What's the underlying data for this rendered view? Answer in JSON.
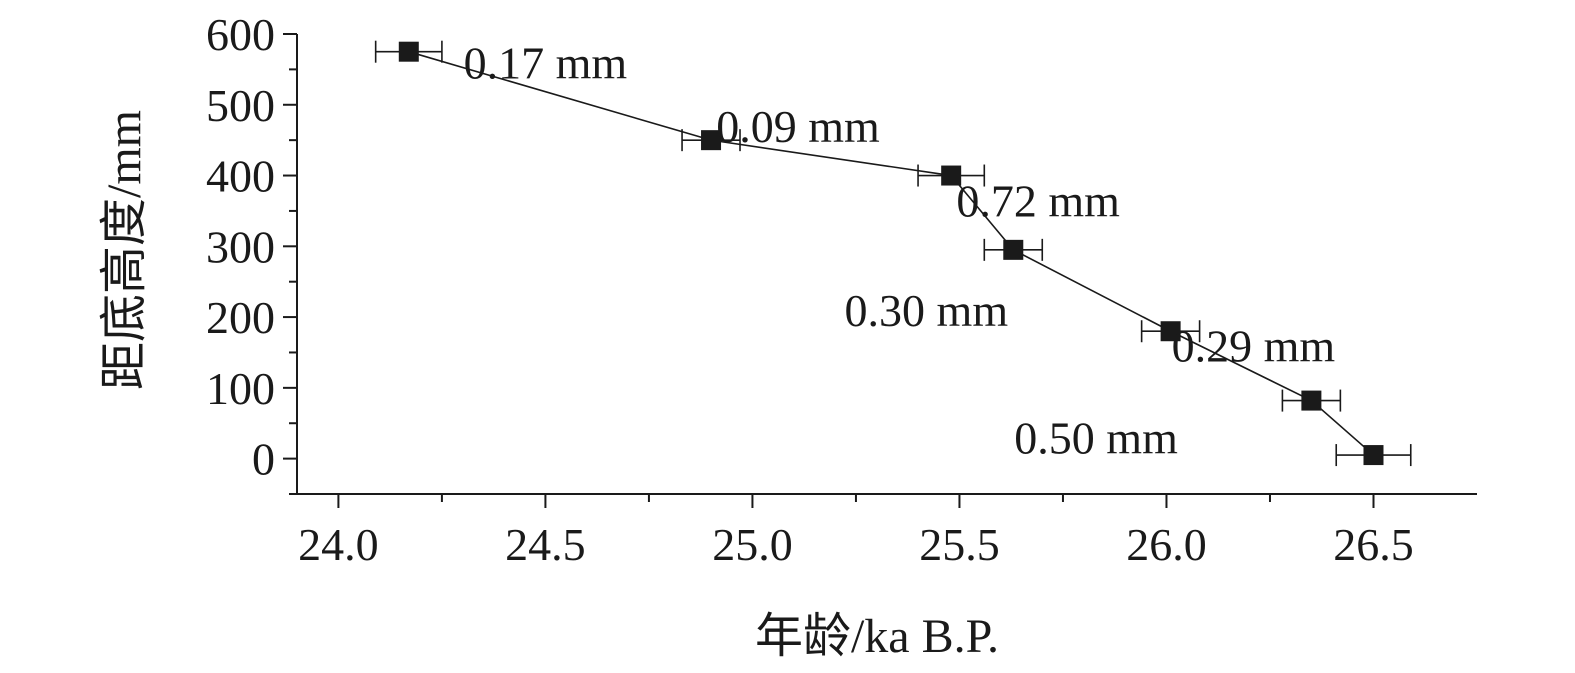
{
  "chart_data": {
    "type": "scatter",
    "xlabel": "年龄/ka B.P.",
    "ylabel": "距底高度/mm",
    "xlim": [
      23.9,
      26.75
    ],
    "ylim": [
      -50,
      600
    ],
    "xticks": [
      "24.0",
      "24.5",
      "25.0",
      "25.5",
      "26.0",
      "26.5"
    ],
    "yticks": [
      "0",
      "100",
      "200",
      "300",
      "400",
      "500",
      "600"
    ],
    "grid": false,
    "legend": "none",
    "series": [
      {
        "marker": "square",
        "line": true,
        "color": "#1a1a1a",
        "points": [
          {
            "x": 24.17,
            "y": 575,
            "xerr": 0.08
          },
          {
            "x": 24.9,
            "y": 450,
            "xerr": 0.07
          },
          {
            "x": 25.48,
            "y": 400,
            "xerr": 0.08
          },
          {
            "x": 25.63,
            "y": 295,
            "xerr": 0.07
          },
          {
            "x": 26.01,
            "y": 180,
            "xerr": 0.07
          },
          {
            "x": 26.35,
            "y": 82,
            "xerr": 0.07
          },
          {
            "x": 26.5,
            "y": 5,
            "xerr": 0.09
          }
        ]
      }
    ],
    "annotations": [
      {
        "text": "0.17 mm",
        "x": 24.5,
        "y": 560
      },
      {
        "text": "0.09 mm",
        "x": 25.11,
        "y": 470
      },
      {
        "text": "0.72 mm",
        "x": 25.69,
        "y": 365
      },
      {
        "text": "0.30 mm",
        "x": 25.42,
        "y": 210
      },
      {
        "text": "0.29 mm",
        "x": 26.21,
        "y": 160
      },
      {
        "text": "0.50 mm",
        "x": 25.83,
        "y": 30
      }
    ]
  }
}
